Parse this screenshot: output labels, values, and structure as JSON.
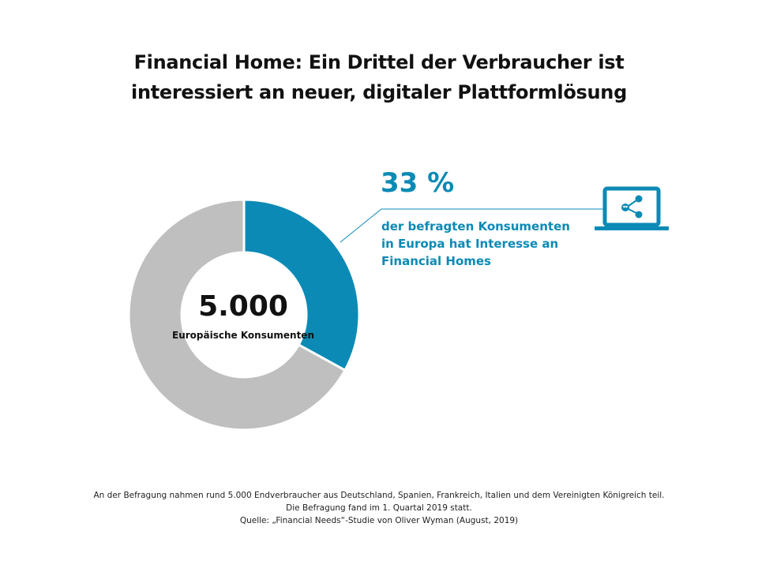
{
  "title": {
    "line1": "Financial Home: Ein Drittel der Verbraucher ist",
    "line2": "interessiert an neuer, digitaler Plattformlösung"
  },
  "chart_data": {
    "type": "pie",
    "variant": "donut",
    "slices": [
      {
        "label": "der befragten Konsumenten in Europa hat Interesse an Financial Homes",
        "value": 33,
        "color": "#0b8ab5"
      },
      {
        "label": "",
        "value": 67,
        "color": "#bfbfbf"
      }
    ],
    "center_value": "5.000",
    "center_label": "Europäische Konsumenten"
  },
  "callout": {
    "percent": "33 %",
    "lines": [
      "der befragten Konsumenten",
      "in Europa hat Interesse an",
      "Financial Homes"
    ],
    "icon": "laptop-share-icon"
  },
  "footnote": {
    "lines": [
      "An der Befragung nahmen rund 5.000 Endverbraucher aus Deutschland, Spanien, Frankreich, Italien und dem Vereinigten Königreich teil.",
      "Die Befragung fand im 1. Quartal 2019 statt.",
      "Quelle: „Financial Needs“-Studie von Oliver Wyman (August, 2019)"
    ]
  },
  "colors": {
    "accent": "#0b8ab5",
    "rest": "#bfbfbf"
  }
}
